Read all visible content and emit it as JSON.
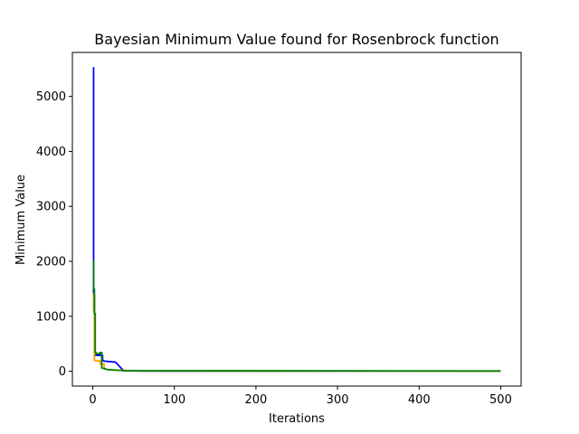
{
  "chart_data": {
    "type": "line",
    "title": "Bayesian Minimum Value found for Rosenbrock function",
    "xlabel": "Iterations",
    "ylabel": "Minimum Value",
    "xlim": [
      -25,
      525
    ],
    "ylim": [
      -270,
      5800
    ],
    "xticks": [
      0,
      100,
      200,
      300,
      400,
      500
    ],
    "yticks": [
      0,
      1000,
      2000,
      3000,
      4000,
      5000
    ],
    "grid": false,
    "legend": "none",
    "series": [
      {
        "color": "#0000ff",
        "x": [
          0,
          1,
          1,
          2,
          2,
          12,
          12,
          14,
          28,
          37,
          37,
          60,
          100,
          500
        ],
        "y": [
          5520,
          5520,
          1400,
          1400,
          290,
          290,
          200,
          185,
          165,
          20,
          10,
          3,
          2,
          1
        ]
      },
      {
        "color": "#ffa500",
        "x": [
          0,
          1,
          1,
          2,
          2,
          3,
          3,
          9,
          9,
          14,
          14,
          18,
          25,
          60,
          500
        ],
        "y": [
          1400,
          1400,
          1100,
          1100,
          200,
          200,
          190,
          190,
          130,
          130,
          50,
          30,
          20,
          5,
          2
        ]
      },
      {
        "color": "#008000",
        "x": [
          0,
          1,
          1,
          2,
          2,
          3,
          3,
          4,
          4,
          9,
          9,
          11,
          11,
          18,
          40,
          500
        ],
        "y": [
          2000,
          2000,
          1500,
          1500,
          1050,
          1050,
          340,
          340,
          320,
          320,
          340,
          340,
          60,
          30,
          10,
          5
        ]
      }
    ]
  }
}
